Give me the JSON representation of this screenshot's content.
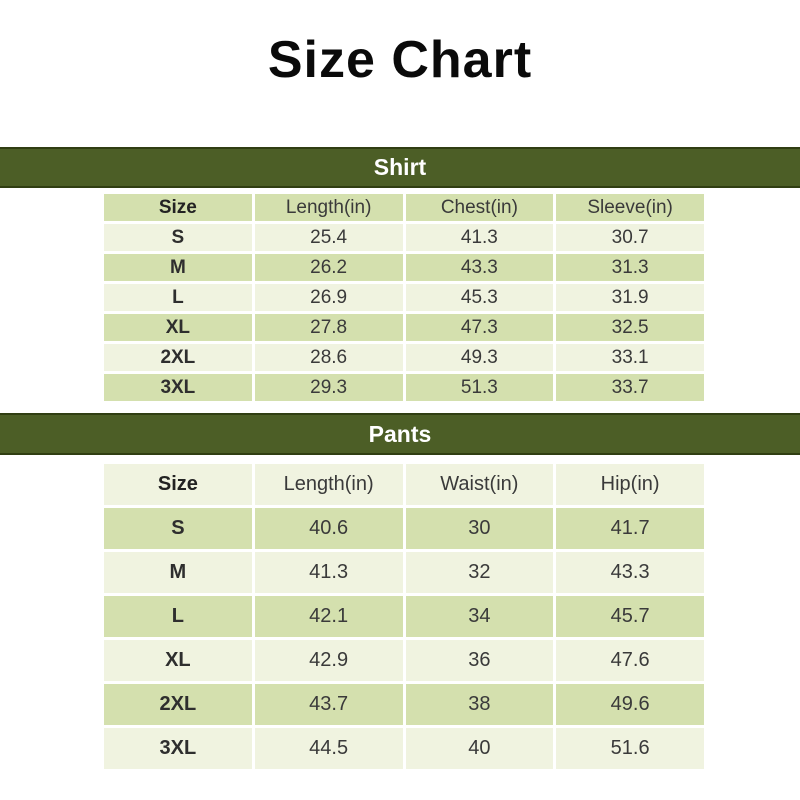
{
  "title": "Size Chart",
  "colors": {
    "banner_background": "#4c5e26",
    "banner_border": "#303e12",
    "banner_text": "#ffffff",
    "row_green": "#d4e0ae",
    "row_light": "#f0f3e0",
    "cell_text": "#3a3a3a",
    "title_text": "#0a0a0a"
  },
  "chart_data": [
    {
      "type": "table",
      "title": "Shirt",
      "columns": [
        "Size",
        "Length(in)",
        "Chest(in)",
        "Sleeve(in)"
      ],
      "rows": [
        [
          "S",
          25.4,
          41.3,
          30.7
        ],
        [
          "M",
          26.2,
          43.3,
          31.3
        ],
        [
          "L",
          26.9,
          45.3,
          31.9
        ],
        [
          "XL",
          27.8,
          47.3,
          32.5
        ],
        [
          "2XL",
          28.6,
          49.3,
          33.1
        ],
        [
          "3XL",
          29.3,
          51.3,
          33.7
        ]
      ]
    },
    {
      "type": "table",
      "title": "Pants",
      "columns": [
        "Size",
        "Length(in)",
        "Waist(in)",
        "Hip(in)"
      ],
      "rows": [
        [
          "S",
          40.6,
          30,
          41.7
        ],
        [
          "M",
          41.3,
          32,
          43.3
        ],
        [
          "L",
          42.1,
          34,
          45.7
        ],
        [
          "XL",
          42.9,
          36,
          47.6
        ],
        [
          "2XL",
          43.7,
          38,
          49.6
        ],
        [
          "3XL",
          44.5,
          40,
          51.6
        ]
      ]
    }
  ]
}
